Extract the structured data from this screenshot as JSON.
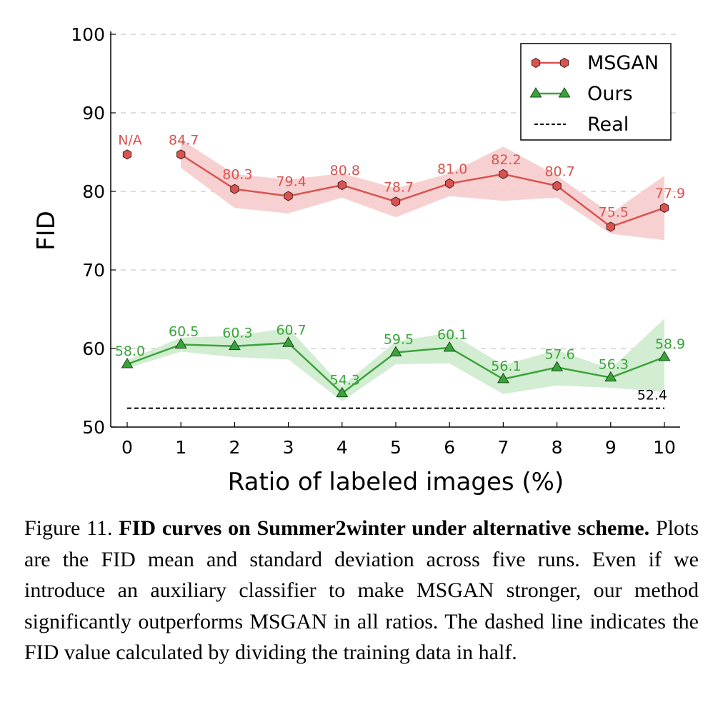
{
  "chart_data": {
    "type": "line",
    "xlabel": "Ratio of labeled images (%)",
    "ylabel": "FID",
    "xlim": [
      -0.3,
      10.3
    ],
    "ylim": [
      50,
      100
    ],
    "x_ticks": [
      0,
      1,
      2,
      3,
      4,
      5,
      6,
      7,
      8,
      9,
      10
    ],
    "y_ticks": [
      50,
      60,
      70,
      80,
      90,
      100
    ],
    "grid": "horizontal dashed",
    "legend_position": "top-right",
    "series": [
      {
        "name": "MSGAN",
        "color": "#d9534f",
        "band_color": "#f6cccc",
        "marker": "hexagon",
        "x": [
          0,
          1,
          2,
          3,
          4,
          5,
          6,
          7,
          8,
          9,
          10
        ],
        "values": [
          84.7,
          84.7,
          80.3,
          79.4,
          80.8,
          78.7,
          81.0,
          82.2,
          80.7,
          75.5,
          77.9
        ],
        "labels": [
          "N/A",
          "84.7",
          "80.3",
          "79.4",
          "80.8",
          "78.7",
          "81.0",
          "82.2",
          "80.7",
          "75.5",
          "77.9"
        ],
        "connected_from_index": 1,
        "band_from_index": 1,
        "lower": [
          84.7,
          83.0,
          77.9,
          77.2,
          79.2,
          76.7,
          79.4,
          78.8,
          79.2,
          74.6,
          73.8
        ],
        "upper": [
          84.7,
          86.6,
          82.2,
          81.5,
          82.3,
          80.4,
          82.3,
          85.7,
          82.0,
          77.2,
          82.0
        ]
      },
      {
        "name": "Ours",
        "color": "#3aa43a",
        "band_color": "#cdebcd",
        "marker": "triangle",
        "x": [
          0,
          1,
          2,
          3,
          4,
          5,
          6,
          7,
          8,
          9,
          10
        ],
        "values": [
          58.0,
          60.5,
          60.3,
          60.7,
          54.3,
          59.5,
          60.1,
          56.1,
          57.6,
          56.3,
          58.9
        ],
        "labels": [
          "58.0",
          "60.5",
          "60.3",
          "60.7",
          "54.3",
          "59.5",
          "60.1",
          "56.1",
          "57.6",
          "56.3",
          "58.9"
        ],
        "connected_from_index": 0,
        "band_from_index": 0,
        "lower": [
          57.5,
          59.6,
          58.9,
          58.6,
          53.3,
          58.0,
          58.1,
          54.2,
          55.3,
          55.0,
          54.5
        ],
        "upper": [
          58.5,
          61.4,
          61.6,
          62.6,
          55.2,
          60.9,
          62.0,
          57.9,
          59.8,
          57.4,
          63.8
        ]
      },
      {
        "name": "Real",
        "color": "#000000",
        "style": "dashed",
        "x": [
          0,
          10
        ],
        "values": [
          52.4,
          52.4
        ],
        "label": "52.4"
      }
    ]
  },
  "caption": {
    "prefix": "Figure 11. ",
    "bold": "FID curves on Summer2winter under alternative scheme.",
    "rest": " Plots are the FID mean and standard deviation across five runs. Even if we introduce an auxiliary classifier to make MSGAN stronger, our method significantly outperforms MSGAN in all ratios. The dashed line indicates the FID value calculated by dividing the training data in half."
  }
}
